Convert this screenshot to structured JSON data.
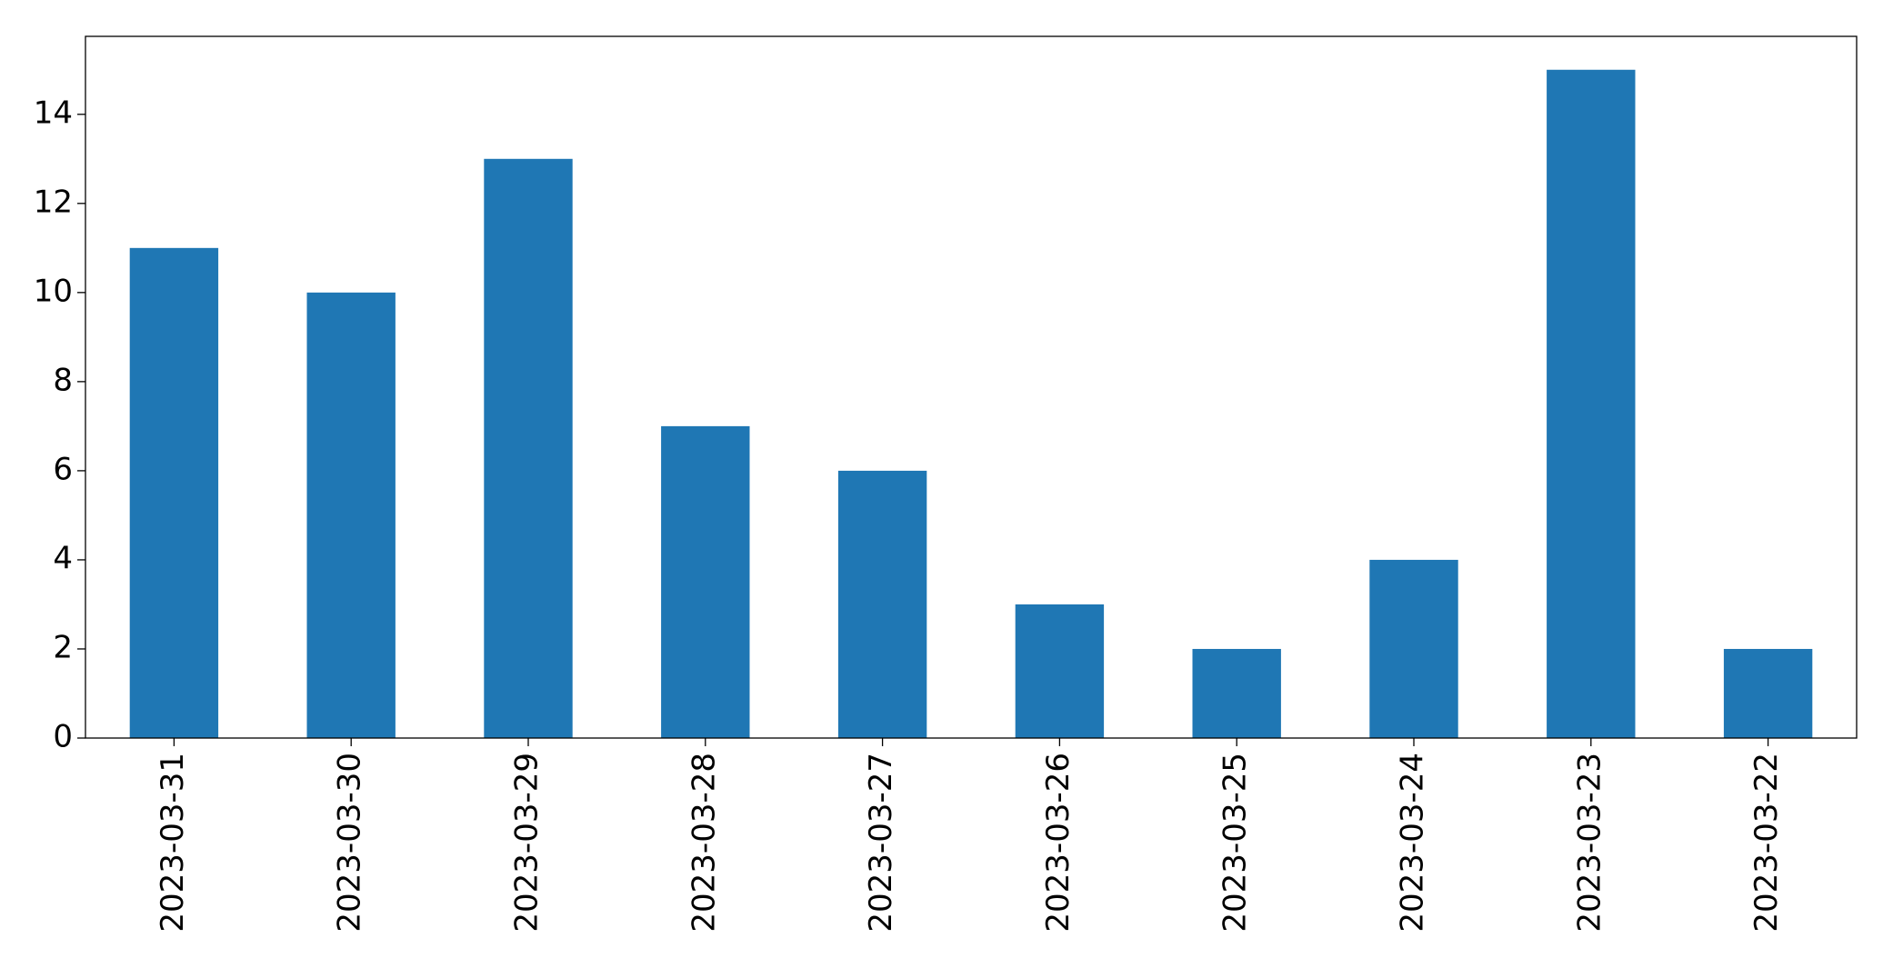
{
  "chart_data": {
    "type": "bar",
    "categories": [
      "2023-03-31",
      "2023-03-30",
      "2023-03-29",
      "2023-03-28",
      "2023-03-27",
      "2023-03-26",
      "2023-03-25",
      "2023-03-24",
      "2023-03-23",
      "2023-03-22"
    ],
    "values": [
      11,
      10,
      13,
      7,
      6,
      3,
      2,
      4,
      15,
      2
    ],
    "color": "#1f77b4",
    "ylim": [
      0,
      15.75
    ],
    "yticks": [
      0,
      2,
      4,
      6,
      8,
      10,
      12,
      14
    ],
    "grid": false
  }
}
